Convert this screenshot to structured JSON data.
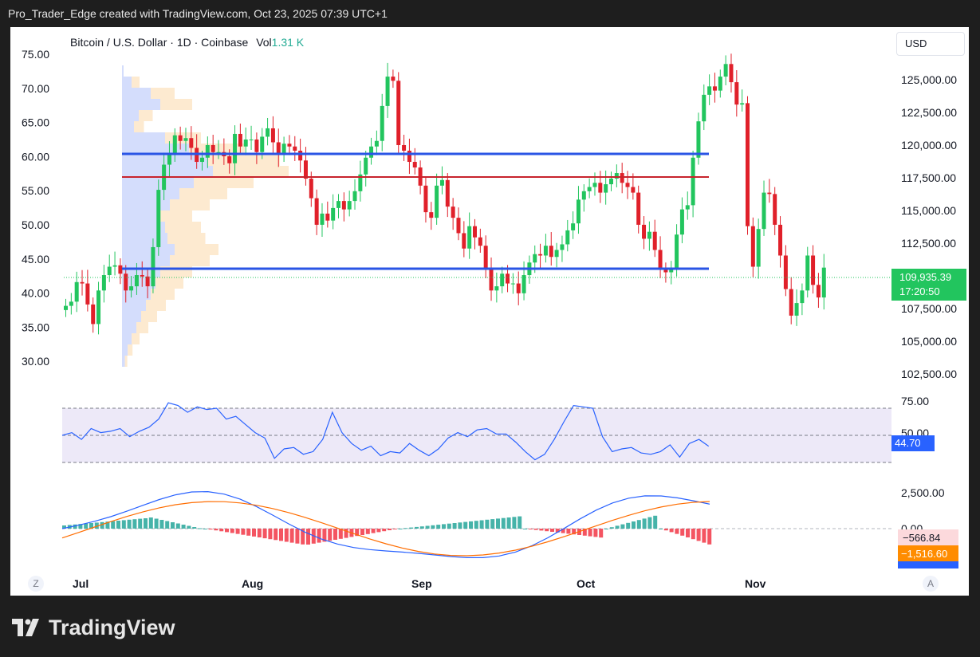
{
  "header": {
    "caption": "Pro_Trader_Edge created with TradingView.com, Oct 23, 2025 07:39 UTC+1"
  },
  "legend": {
    "symbol": "Bitcoin / U.S. Dollar · 1D · Coinbase",
    "vol_label": "Vol",
    "vol_value": "1.31 K"
  },
  "currency_button": "USD",
  "left_axis_labels": [
    "75.00",
    "70.00",
    "65.00",
    "60.00",
    "55.00",
    "50.00",
    "45.00",
    "40.00",
    "35.00",
    "30.00"
  ],
  "right_axis_labels": [
    "125,000.00",
    "122,500.00",
    "120,000.00",
    "117,500.00",
    "115,000.00",
    "112,500.00",
    "110,000.00",
    "107,500.00",
    "105,000.00",
    "102,500.00"
  ],
  "current_price": {
    "value": "109,935.39",
    "countdown": "17:20:50"
  },
  "rsi": {
    "labels": [
      "75.00",
      "50.00"
    ],
    "value": "44.70"
  },
  "macd": {
    "labels": [
      "2,500.00",
      "0.00"
    ],
    "histogram_value": "−566.84",
    "signal_value": "−1,516.60"
  },
  "x_axis_labels": [
    "Jul",
    "Aug",
    "Sep",
    "Oct",
    "Nov"
  ],
  "bottom_buttons": {
    "z": "Z",
    "a": "A"
  },
  "brand": "TradingView",
  "colors": {
    "up": "#22c55e",
    "down": "#e0202a",
    "level_blue": "#2a55e5",
    "level_red": "#c8232c",
    "rsi_line": "#2962ff",
    "signal": "#ff6d00"
  },
  "chart_data": {
    "type": "candlestick",
    "title": "Bitcoin / U.S. Dollar · 1D · Coinbase",
    "x_labels": [
      "Jul",
      "Aug",
      "Sep",
      "Oct",
      "Nov"
    ],
    "ylim": [
      102500,
      126000
    ],
    "closes": [
      107200,
      107500,
      108900,
      108800,
      107300,
      105900,
      108300,
      109400,
      110000,
      110100,
      109500,
      108300,
      108600,
      109400,
      109300,
      108600,
      111400,
      115500,
      117300,
      118000,
      119400,
      119000,
      119200,
      118500,
      117500,
      117800,
      118700,
      118200,
      118200,
      117900,
      117400,
      119500,
      118600,
      119100,
      119100,
      118200,
      119300,
      119900,
      118900,
      118000,
      118800,
      118600,
      118300,
      117600,
      116300,
      114900,
      113000,
      113800,
      113300,
      114200,
      114700,
      114100,
      114700,
      115400,
      116600,
      117800,
      118600,
      119000,
      121500,
      123600,
      123300,
      118700,
      118300,
      117500,
      117100,
      115800,
      113900,
      113500,
      115800,
      116200,
      114300,
      113500,
      112400,
      111300,
      112900,
      112100,
      111500,
      109800,
      108300,
      108600,
      109500,
      108800,
      108800,
      108100,
      109400,
      110300,
      110900,
      110800,
      111500,
      110700,
      111200,
      111600,
      112600,
      113100,
      114800,
      115400,
      115700,
      116000,
      115300,
      115900,
      116300,
      116700,
      116000,
      115700,
      115300,
      113000,
      112000,
      112500,
      111200,
      109800,
      109600,
      109800,
      112300,
      114100,
      114400,
      117800,
      120400,
      122300,
      122900,
      122600,
      123600,
      124500,
      123200,
      121600,
      121700,
      112900,
      110000,
      112700,
      115300,
      115200,
      113000,
      110800,
      108400,
      106500,
      107400,
      108300,
      110800,
      108700,
      107800,
      109935
    ],
    "series": [
      {
        "name": "RSI",
        "current": 44.7,
        "overbought": 70,
        "oversold": 30
      },
      {
        "name": "MACD",
        "histogram": -566.84,
        "signal": -1516.6
      }
    ],
    "levels": [
      {
        "type": "resistance",
        "value": 119800
      },
      {
        "type": "poc",
        "value": 118000
      },
      {
        "type": "support",
        "value": 110500
      }
    ]
  }
}
